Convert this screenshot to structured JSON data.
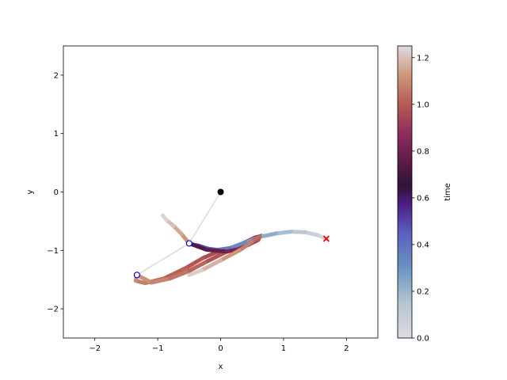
{
  "chart_data": {
    "type": "scatter",
    "title": "",
    "xlabel": "x",
    "ylabel": "y",
    "xlim": [
      -2.5,
      2.5
    ],
    "ylim": [
      -2.5,
      2.5
    ],
    "xticks": [
      -2,
      -1,
      0,
      1,
      2
    ],
    "yticks": [
      -2,
      -1,
      0,
      1,
      2
    ],
    "xtick_labels": [
      "−2",
      "−1",
      "0",
      "1",
      "2"
    ],
    "ytick_labels": [
      "−2",
      "−1",
      "0",
      "1",
      "2"
    ],
    "grid": false,
    "colorbar": {
      "label": "time",
      "range": [
        0.0,
        1.25
      ],
      "ticks": [
        0.0,
        0.2,
        0.4,
        0.6,
        0.8,
        1.0,
        1.2
      ],
      "tick_labels": [
        "0.0",
        "0.2",
        "0.4",
        "0.6",
        "0.8",
        "1.0",
        "1.2"
      ],
      "colormap": "twilight"
    },
    "trajectory": {
      "name": "",
      "time": [
        0.0,
        0.05,
        0.1,
        0.15,
        0.2,
        0.25,
        0.3,
        0.35,
        0.4,
        0.45,
        0.5,
        0.55,
        0.6,
        0.65,
        0.7,
        0.75,
        0.8,
        0.85,
        0.9,
        0.95,
        1.0,
        1.05,
        1.1,
        1.15,
        1.2,
        1.25
      ],
      "x": [
        1.68,
        1.55,
        1.35,
        1.12,
        0.88,
        0.62,
        0.4,
        0.15,
        -0.05,
        -0.2,
        -0.35,
        -0.48,
        -0.5,
        -0.5,
        -0.5,
        -0.22,
        0.1,
        0.28,
        0.45,
        0.6,
        0.62,
        0.5,
        0.3,
        0.0,
        -0.3,
        -0.5
      ],
      "y": [
        -0.8,
        -0.74,
        -0.69,
        -0.68,
        -0.71,
        -0.77,
        -0.86,
        -0.96,
        -0.99,
        -0.97,
        -0.92,
        -0.89,
        -0.88,
        -0.88,
        -0.88,
        -0.99,
        -1.02,
        -0.98,
        -0.9,
        -0.82,
        -0.76,
        -0.85,
        -1.0,
        -1.17,
        -1.34,
        -1.42
      ]
    },
    "trajectory_tail": {
      "x": [
        0.0,
        -0.28,
        -0.55,
        -0.9,
        -1.2,
        -1.35,
        -1.33,
        -1.1,
        -0.8,
        -0.5,
        -0.2,
        0.1,
        0.35,
        0.55,
        0.65
      ],
      "y": [
        -1.0,
        -1.13,
        -1.3,
        -1.48,
        -1.56,
        -1.52,
        -1.42,
        -1.55,
        -1.48,
        -1.35,
        -1.18,
        -1.02,
        -0.88,
        -0.78,
        -0.75
      ],
      "time": [
        0.95,
        0.98,
        1.0,
        1.03,
        1.06,
        1.09,
        1.12,
        1.1,
        1.07,
        1.04,
        1.0,
        0.96,
        0.92,
        0.88,
        0.84
      ]
    },
    "inner_tail": {
      "x": [
        -0.5,
        -0.62,
        -0.75,
        -0.86,
        -0.92
      ],
      "y": [
        -0.88,
        -0.72,
        -0.58,
        -0.48,
        -0.4
      ],
      "time": [
        1.1,
        1.14,
        1.18,
        1.22,
        1.25
      ]
    },
    "pivot": {
      "x": 0.0,
      "y": 0.0
    },
    "arm_points": [
      {
        "x": 0.0,
        "y": 0.0
      },
      {
        "x": -0.5,
        "y": -0.88
      },
      {
        "x": -1.33,
        "y": -1.42
      }
    ],
    "current_markers": [
      {
        "x": -0.5,
        "y": -0.88
      },
      {
        "x": -1.33,
        "y": -1.42
      }
    ],
    "start_marker": {
      "x": 1.68,
      "y": -0.8
    }
  }
}
